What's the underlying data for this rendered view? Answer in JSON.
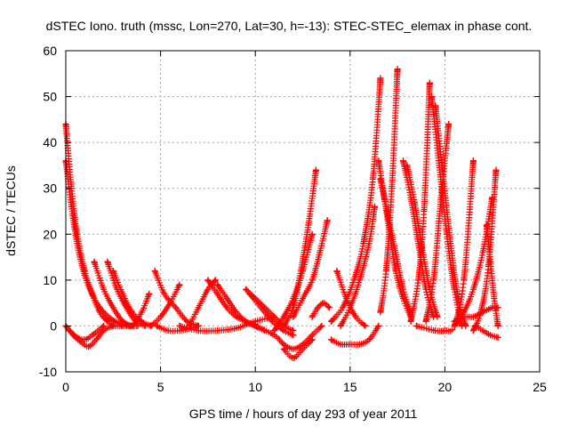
{
  "chart_data": {
    "type": "scatter",
    "title": "dSTEC Iono. truth (mssc, Lon=270, Lat=30, h=-13): STEC-STEC_elemax in phase cont.",
    "xlabel": "GPS time / hours of day 293 of year 2011",
    "ylabel": "dSTEC  / TECUs",
    "xlim": [
      0,
      25
    ],
    "ylim": [
      -10,
      60
    ],
    "xticks": [
      0,
      5,
      10,
      15,
      20,
      25
    ],
    "yticks": [
      -10,
      0,
      10,
      20,
      30,
      40,
      50,
      60
    ],
    "grid": true,
    "marker": "plus",
    "color": "#ff0000",
    "series": [
      {
        "x": [
          0.0,
          0.3,
          0.6,
          1.0,
          1.4,
          1.8,
          2.2,
          2.6,
          3.0
        ],
        "y": [
          44,
          30,
          20,
          12,
          7,
          3,
          1,
          0,
          0
        ]
      },
      {
        "x": [
          0.0,
          0.3,
          0.6,
          1.0,
          1.5,
          2.0,
          2.6,
          3.2,
          3.8
        ],
        "y": [
          36,
          26,
          18,
          11,
          6,
          3,
          1,
          0,
          0
        ]
      },
      {
        "x": [
          0.0,
          0.4,
          0.8,
          1.2,
          1.6,
          2.0,
          2.5
        ],
        "y": [
          0,
          -2,
          -3.5,
          -4.5,
          -3,
          -1,
          0
        ]
      },
      {
        "x": [
          0.2,
          0.6,
          1.0,
          1.4,
          2.0
        ],
        "y": [
          -1,
          -2.5,
          -3,
          -2,
          0
        ]
      },
      {
        "x": [
          1.5,
          2.0,
          2.5,
          3.0,
          3.5
        ],
        "y": [
          14,
          8,
          4,
          1,
          0
        ]
      },
      {
        "x": [
          2.2,
          2.7,
          3.2,
          3.7,
          4.2
        ],
        "y": [
          14,
          8,
          4,
          1,
          0
        ]
      },
      {
        "x": [
          2.5,
          3.0,
          3.5,
          4.0,
          4.5
        ],
        "y": [
          12,
          7,
          3,
          1,
          0
        ]
      },
      {
        "x": [
          3.0,
          3.5,
          4.0,
          4.4
        ],
        "y": [
          1,
          0,
          3,
          7
        ]
      },
      {
        "x": [
          4.7,
          5.2,
          5.8,
          6.4,
          7.0
        ],
        "y": [
          12,
          7,
          4,
          1,
          0
        ]
      },
      {
        "x": [
          4.8,
          5.4,
          6.0,
          6.5,
          7.0
        ],
        "y": [
          0,
          -1,
          -1,
          -0.5,
          0
        ]
      },
      {
        "x": [
          4.5,
          5.0,
          5.5,
          6.0
        ],
        "y": [
          0,
          2,
          5,
          9
        ]
      },
      {
        "x": [
          6.5,
          7.0,
          7.5,
          7.9
        ],
        "y": [
          0,
          4,
          8,
          10
        ]
      },
      {
        "x": [
          7.5,
          8.0,
          8.5,
          9.0,
          9.5,
          10.0
        ],
        "y": [
          10,
          7,
          4,
          2,
          1,
          0
        ]
      },
      {
        "x": [
          8.0,
          8.5,
          9.0,
          9.5,
          10.0,
          10.5
        ],
        "y": [
          9,
          6,
          3,
          1,
          0,
          -1
        ]
      },
      {
        "x": [
          6.0,
          7.0,
          8.0,
          9.0,
          10.0,
          11.0
        ],
        "y": [
          0,
          -1,
          -1,
          -0.5,
          1,
          2
        ]
      },
      {
        "x": [
          9.5,
          10.0,
          10.5,
          11.0,
          11.5,
          12.0
        ],
        "y": [
          8,
          6,
          4,
          2,
          0,
          -1
        ]
      },
      {
        "x": [
          9.7,
          10.3,
          10.9,
          11.5,
          12.0
        ],
        "y": [
          7,
          4,
          1,
          -1,
          -2
        ]
      },
      {
        "x": [
          10.0,
          11.0,
          11.5,
          12.0,
          12.5,
          13.0,
          13.5
        ],
        "y": [
          0,
          -2,
          -4,
          -5,
          -4,
          -2,
          0
        ]
      },
      {
        "x": [
          11.5,
          12.0,
          12.5,
          13.0
        ],
        "y": [
          -5,
          -7,
          -5,
          -3
        ]
      },
      {
        "x": [
          11.5,
          12.0,
          12.4,
          12.8,
          13.2
        ],
        "y": [
          0,
          4,
          12,
          22,
          34
        ]
      },
      {
        "x": [
          11.0,
          11.5,
          12.0,
          12.5,
          13.0
        ],
        "y": [
          -1,
          2,
          6,
          12,
          20
        ]
      },
      {
        "x": [
          12.0,
          12.5,
          13.0,
          13.4,
          13.8
        ],
        "y": [
          2,
          6,
          10,
          16,
          23
        ]
      },
      {
        "x": [
          13.0,
          13.3,
          13.6,
          13.9
        ],
        "y": [
          2,
          4,
          5,
          4
        ]
      },
      {
        "x": [
          14.3,
          14.8,
          15.3,
          15.8
        ],
        "y": [
          12,
          6,
          2,
          0
        ]
      },
      {
        "x": [
          14.0,
          14.5,
          15.0,
          15.5,
          16.0,
          16.5
        ],
        "y": [
          -3,
          -4,
          -4,
          -4,
          -3,
          0
        ]
      },
      {
        "x": [
          14.5,
          15.0,
          15.5,
          16.0,
          16.3
        ],
        "y": [
          0,
          4,
          10,
          18,
          26
        ]
      },
      {
        "x": [
          14.0,
          14.6,
          15.2,
          15.7,
          16.2,
          16.6
        ],
        "y": [
          1,
          4,
          10,
          18,
          32,
          54
        ]
      },
      {
        "x": [
          16.5,
          16.8,
          17.1,
          17.4,
          17.8,
          18.2
        ],
        "y": [
          36,
          28,
          20,
          12,
          6,
          2
        ]
      },
      {
        "x": [
          16.6,
          16.9,
          17.2,
          17.5
        ],
        "y": [
          3,
          12,
          30,
          56
        ]
      },
      {
        "x": [
          16.6,
          17.0,
          17.4,
          17.8,
          18.2
        ],
        "y": [
          32,
          24,
          16,
          8,
          3
        ]
      },
      {
        "x": [
          17.8,
          18.2,
          18.6,
          19.0,
          19.4
        ],
        "y": [
          36,
          28,
          18,
          8,
          2
        ]
      },
      {
        "x": [
          18.0,
          18.4,
          18.8,
          19.2,
          19.6
        ],
        "y": [
          35,
          27,
          17,
          8,
          2
        ]
      },
      {
        "x": [
          18.2,
          18.6,
          18.9,
          19.2
        ],
        "y": [
          1,
          10,
          25,
          53
        ]
      },
      {
        "x": [
          19.3,
          19.7,
          20.1,
          20.5,
          20.9
        ],
        "y": [
          50,
          35,
          20,
          8,
          0
        ]
      },
      {
        "x": [
          19.5,
          19.9,
          20.3,
          20.7,
          21.1
        ],
        "y": [
          48,
          33,
          18,
          6,
          0
        ]
      },
      {
        "x": [
          19.0,
          19.4,
          19.8,
          20.2
        ],
        "y": [
          1,
          10,
          28,
          44
        ]
      },
      {
        "x": [
          18.5,
          19.5,
          20.0,
          20.5,
          21.0,
          21.5
        ],
        "y": [
          0,
          -1,
          -1,
          0,
          10,
          36
        ]
      },
      {
        "x": [
          20.5,
          21.0,
          21.5,
          22.0,
          22.5
        ],
        "y": [
          0,
          3,
          8,
          16,
          28
        ]
      },
      {
        "x": [
          21.5,
          21.9,
          22.3,
          22.7
        ],
        "y": [
          -1,
          3,
          13,
          34
        ]
      },
      {
        "x": [
          20.5,
          21.0,
          21.5,
          22.0,
          22.5,
          22.8
        ],
        "y": [
          1,
          2,
          2,
          3,
          4,
          4
        ]
      },
      {
        "x": [
          21.6,
          22.0,
          22.4,
          22.8
        ],
        "y": [
          0,
          -1,
          -2,
          -2.5
        ]
      },
      {
        "x": [
          22.2,
          22.4,
          22.6,
          22.8
        ],
        "y": [
          22,
          14,
          6,
          0
        ]
      }
    ]
  }
}
